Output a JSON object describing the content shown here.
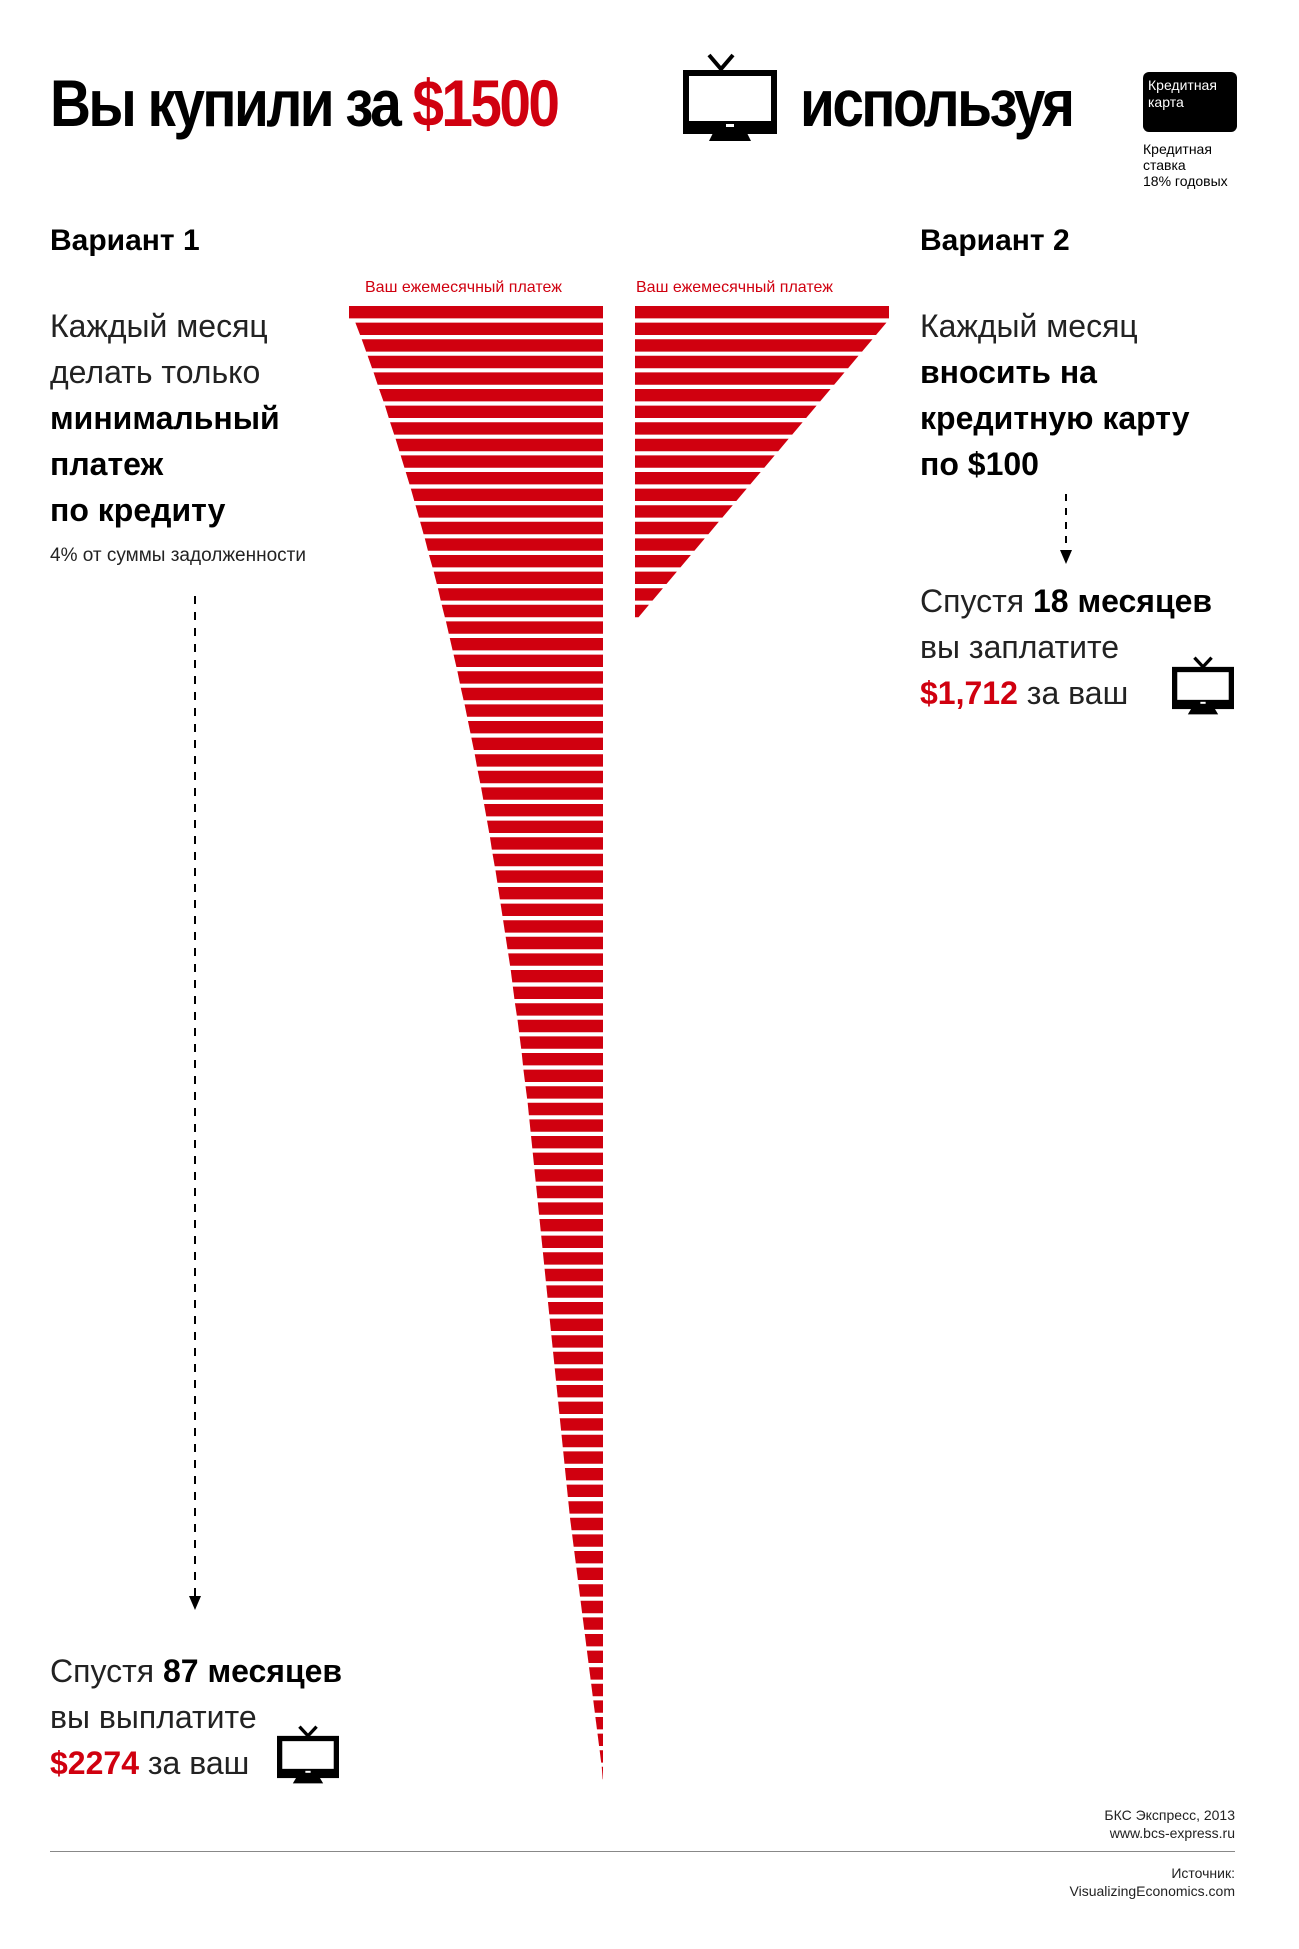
{
  "header": {
    "title_part1": "Вы купили за ",
    "title_price": "$1500",
    "title_part2": "используя",
    "tv_icon": "tv-icon",
    "card_line1": "Кредитная",
    "card_line2": "карта",
    "rate_line1": "Кредитная",
    "rate_line2": "ставка",
    "rate_line3": "18% годовых"
  },
  "variant1": {
    "heading": "Вариант 1",
    "line1": "Каждый месяц",
    "line2": "делать только",
    "line3": "минимальный",
    "line4": "платеж",
    "line5": "по кредиту",
    "note": "4% от суммы задолженности",
    "result_prefix": "Спустя ",
    "result_months": "87 месяцев",
    "result_line2": "вы выплатите",
    "result_amount": "$2274",
    "result_suffix": " за ваш"
  },
  "variant2": {
    "heading": "Вариант 2",
    "line1": "Каждый месяц",
    "line2": "вносить на",
    "line3": "кредитную карту",
    "line4": "по $100",
    "result_prefix": "Спустя ",
    "result_months": "18 месяцев",
    "result_line2": "вы заплатите",
    "result_amount": "$1,712",
    "result_suffix": " за ваш"
  },
  "footer": {
    "credit_line1": "БКС Экспресс, 2013",
    "credit_line2": "www.bcs-express.ru",
    "source_label": "Источник:",
    "source_value": "VisualizingEconomics.com"
  },
  "colors": {
    "accent": "#d0000f",
    "text": "#000000"
  },
  "chart_data": [
    {
      "type": "bar",
      "name": "variant1-minimum-payment",
      "title": "Ваш ежемесячный платеж",
      "orientation": "horizontal",
      "anchor": "right",
      "unit": "USD (estimated monthly payment)",
      "values": [
        60,
        58.5,
        57,
        55.6,
        54.2,
        52.9,
        51.5,
        50.3,
        49,
        47.8,
        46.6,
        45.4,
        44.3,
        43.2,
        42.1,
        41.1,
        40,
        39,
        38.1,
        37.1,
        36.2,
        35.3,
        34.4,
        33.6,
        32.7,
        31.9,
        31.1,
        30.3,
        29.6,
        28.8,
        28.1,
        27.4,
        26.7,
        26.1,
        25.4,
        24.8,
        24.2,
        23.6,
        23,
        22.4,
        21.8,
        21.3,
        20.8,
        20.2,
        19.7,
        19.2,
        18.8,
        18.3,
        17.8,
        17.4,
        17,
        16.6,
        16.2,
        15.8,
        15.4,
        15,
        14.6,
        14.2,
        13.8,
        13.4,
        13,
        12.6,
        12.2,
        11.8,
        11.4,
        11,
        10.6,
        10.2,
        9.8,
        9.4,
        9,
        8.6,
        8.2,
        7.8,
        7.3,
        6.8,
        6.3,
        5.8,
        5.3,
        4.8,
        4.3,
        3.8,
        3.3,
        2.8,
        2.3,
        1.8,
        1.3,
        0.8,
        0.3
      ],
      "xlim": [
        0,
        60
      ]
    },
    {
      "type": "bar",
      "name": "variant2-fixed-payment",
      "title": "Ваш ежемесячный платеж",
      "orientation": "horizontal",
      "anchor": "left",
      "unit": "relative size (1 = first month)",
      "values": [
        1.0,
        0.99,
        0.935,
        0.88,
        0.825,
        0.77,
        0.715,
        0.66,
        0.605,
        0.55,
        0.495,
        0.44,
        0.385,
        0.33,
        0.275,
        0.22,
        0.165,
        0.11,
        0.055
      ],
      "xlim": [
        0,
        1
      ]
    }
  ]
}
